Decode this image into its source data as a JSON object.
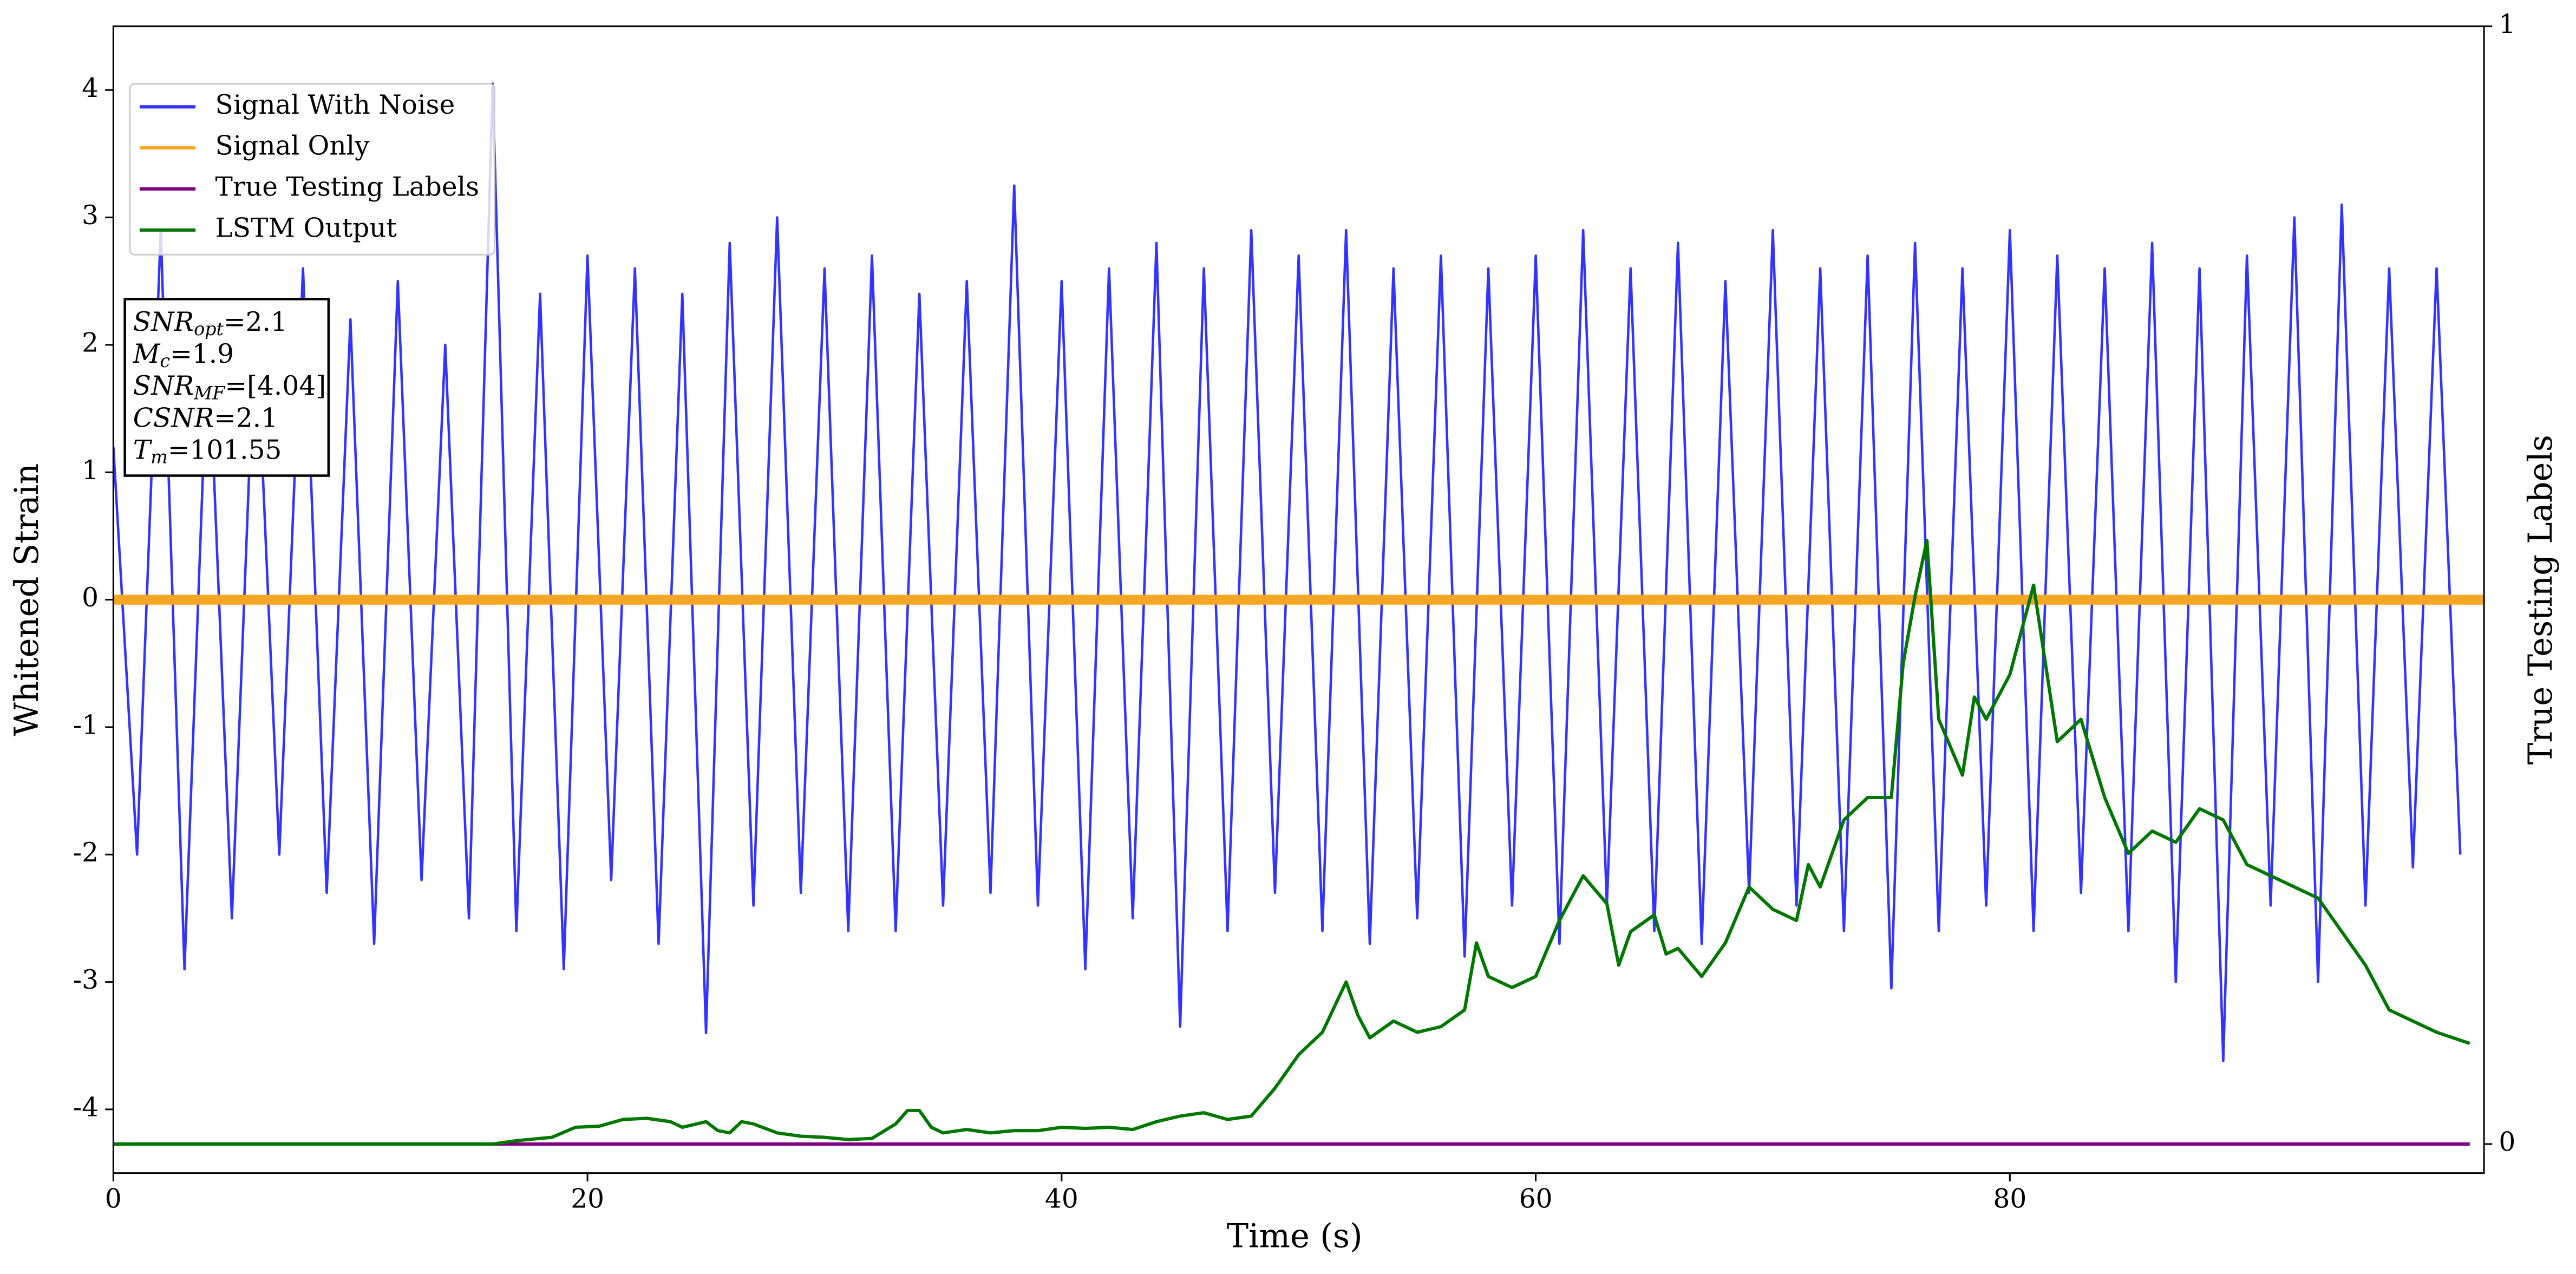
{
  "chart_data": {
    "type": "line",
    "xlabel": "Time (s)",
    "ylabel": "Whitened Strain",
    "y2label": "True Testing Labels",
    "xlim": [
      0,
      100
    ],
    "xticks": [
      0,
      20,
      40,
      60,
      80
    ],
    "ylim": [
      -4.5,
      4.5
    ],
    "yticks": [
      -4,
      -3,
      -2,
      -1,
      0,
      1,
      2,
      3,
      4
    ],
    "y2lim": [
      -0.026,
      1
    ],
    "y2ticks": [
      0,
      1
    ],
    "legend": "upper left",
    "annotations": [
      {
        "main": "SNR",
        "sub": "opt",
        "rest": "=2.1"
      },
      {
        "main": "M",
        "sub": "c",
        "rest": "=1.9"
      },
      {
        "main": "SNR",
        "sub": "MF",
        "rest": "=[4.04]"
      },
      {
        "main": "CSNR",
        "sub": "",
        "rest": "=2.1"
      },
      {
        "main": "T",
        "sub": "m",
        "rest": "=101.55"
      }
    ],
    "series": [
      {
        "name": "Signal With Noise",
        "color": "#3333ff",
        "width": 1.5,
        "x": [
          0,
          1,
          2,
          3,
          4,
          5,
          6,
          7,
          8,
          9,
          10,
          11,
          12,
          13,
          14,
          15,
          16,
          17,
          18,
          19,
          20,
          21,
          22,
          23,
          24,
          25,
          26,
          27,
          28,
          29,
          30,
          31,
          32,
          33,
          34,
          35,
          36,
          37,
          38,
          39,
          40,
          41,
          42,
          43,
          44,
          45,
          46,
          47,
          48,
          49,
          50,
          51,
          52,
          53,
          54,
          55,
          56,
          57,
          58,
          59,
          60,
          61,
          62,
          63,
          64,
          65,
          66,
          67,
          68,
          69,
          70,
          71,
          72,
          73,
          74,
          75,
          76,
          77,
          78,
          79,
          80,
          81,
          82,
          83,
          84,
          85,
          86,
          87,
          88,
          89,
          90,
          91,
          92,
          93,
          94,
          95,
          96,
          97,
          98,
          99
        ],
        "values": [
          1.2,
          -2.0,
          2.9,
          -2.9,
          2.1,
          -2.5,
          2.3,
          -2.0,
          2.6,
          -2.3,
          2.2,
          -2.7,
          2.5,
          -2.2,
          2.0,
          -2.5,
          4.05,
          -2.6,
          2.4,
          -2.9,
          2.7,
          -2.2,
          2.6,
          -2.7,
          2.4,
          -3.4,
          2.8,
          -2.4,
          3.0,
          -2.3,
          2.6,
          -2.6,
          2.7,
          -2.6,
          2.4,
          -2.4,
          2.5,
          -2.3,
          3.25,
          -2.4,
          2.5,
          -2.9,
          2.6,
          -2.5,
          2.8,
          -3.35,
          2.6,
          -2.6,
          2.9,
          -2.3,
          2.7,
          -2.6,
          2.9,
          -2.7,
          2.6,
          -2.5,
          2.7,
          -2.8,
          2.6,
          -2.4,
          2.7,
          -2.7,
          2.9,
          -2.4,
          2.6,
          -2.6,
          2.8,
          -2.7,
          2.5,
          -2.3,
          2.9,
          -2.4,
          2.6,
          -2.6,
          2.7,
          -3.05,
          2.8,
          -2.6,
          2.6,
          -2.4,
          2.9,
          -2.6,
          2.7,
          -2.3,
          2.6,
          -2.6,
          2.8,
          -3.0,
          2.6,
          -3.62,
          2.7,
          -2.4,
          3.0,
          -3.0,
          3.1,
          -2.4,
          2.6,
          -2.1,
          2.6,
          -2.0
        ]
      },
      {
        "name": "Signal Only",
        "color": "#f5a623",
        "width": 6,
        "x": [
          0,
          100
        ],
        "values": [
          0,
          0
        ]
      },
      {
        "name": "True Testing Labels",
        "color": "#800080",
        "width": 2,
        "axis": "y2",
        "x": [
          0,
          99.4
        ],
        "values": [
          0,
          0
        ]
      },
      {
        "name": "LSTM Output",
        "color": "#007700",
        "width": 2,
        "axis": "y2",
        "x": [
          0,
          16,
          17,
          18.5,
          19.5,
          20.5,
          21.5,
          22.5,
          23.5,
          24,
          25,
          25.5,
          26,
          26.5,
          27,
          28,
          29,
          30,
          31,
          32,
          33,
          33.5,
          34,
          34.5,
          35,
          36,
          37,
          38,
          39,
          40,
          41,
          42,
          43,
          44,
          45,
          46,
          47,
          48,
          49,
          50,
          51,
          52,
          52.5,
          53,
          54,
          55,
          56,
          57,
          57.5,
          58,
          59,
          60,
          61,
          62,
          63,
          63.5,
          64,
          65,
          65.5,
          66,
          67,
          68,
          69,
          70,
          71,
          71.5,
          72,
          73,
          74,
          75,
          75.5,
          76,
          76.5,
          77,
          78,
          78.5,
          79,
          80,
          81,
          82,
          83,
          84,
          85,
          86,
          87,
          88,
          89,
          90,
          91,
          92,
          93,
          94,
          95,
          96,
          97,
          98,
          99.4
        ],
        "values": [
          0,
          0,
          0.003,
          0.006,
          0.015,
          0.016,
          0.022,
          0.023,
          0.02,
          0.015,
          0.02,
          0.012,
          0.01,
          0.02,
          0.018,
          0.01,
          0.007,
          0.006,
          0.004,
          0.005,
          0.018,
          0.03,
          0.03,
          0.015,
          0.01,
          0.013,
          0.01,
          0.012,
          0.012,
          0.015,
          0.014,
          0.015,
          0.013,
          0.02,
          0.025,
          0.028,
          0.022,
          0.025,
          0.05,
          0.08,
          0.1,
          0.145,
          0.115,
          0.095,
          0.11,
          0.1,
          0.105,
          0.12,
          0.18,
          0.15,
          0.14,
          0.15,
          0.2,
          0.24,
          0.215,
          0.16,
          0.19,
          0.205,
          0.17,
          0.175,
          0.15,
          0.18,
          0.23,
          0.21,
          0.2,
          0.25,
          0.23,
          0.29,
          0.31,
          0.31,
          0.43,
          0.49,
          0.54,
          0.38,
          0.33,
          0.4,
          0.38,
          0.42,
          0.5,
          0.36,
          0.38,
          0.31,
          0.26,
          0.28,
          0.27,
          0.3,
          0.29,
          0.25,
          0.24,
          0.23,
          0.22,
          0.19,
          0.16,
          0.12,
          0.11,
          0.1,
          0.09
        ]
      }
    ]
  }
}
